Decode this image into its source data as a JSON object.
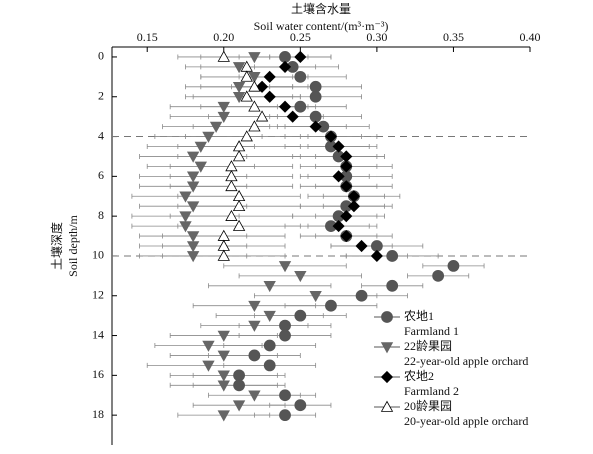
{
  "chart_data": {
    "type": "errorbar-profile",
    "x_title_cn": "土壤含水量",
    "x_title": "Soil water content/(m³·m⁻³)",
    "y_title_cn": "土壤深度",
    "y_title": "Soil depth/m",
    "xlim": [
      0.127,
      0.4
    ],
    "xticks": [
      0.15,
      {
        "value": 0.2,
        "label": "0.20"
      },
      0.25,
      {
        "value": 0.3,
        "label": "0.30"
      },
      0.35,
      {
        "value": 0.4,
        "label": "0.40"
      }
    ],
    "ylim": [
      -0.5,
      19.5
    ],
    "yticks": [
      0,
      2,
      4,
      6,
      8,
      10,
      12,
      14,
      16,
      18
    ],
    "y_inverted": true,
    "x_axis_top": true,
    "reference_lines": [
      4,
      10
    ],
    "series": [
      {
        "name": "农地1",
        "name_en": "Farmland 1",
        "marker": "circle",
        "color": "#555555",
        "depth": [
          0,
          0.5,
          1,
          1.5,
          2,
          2.5,
          3,
          3.5,
          4,
          4.5,
          5,
          5.5,
          6,
          6.5,
          7,
          7.5,
          8,
          8.5,
          9,
          9.5,
          10,
          10.5,
          11,
          11.5,
          12,
          12.5,
          13,
          13.5,
          14,
          14.5,
          15,
          15.5,
          16,
          16.5,
          17,
          17.5,
          18
        ],
        "values": [
          0.24,
          0.245,
          0.25,
          0.26,
          0.26,
          0.25,
          0.26,
          0.265,
          0.27,
          0.27,
          0.275,
          0.28,
          0.28,
          0.28,
          0.285,
          0.28,
          0.275,
          0.27,
          0.28,
          0.3,
          0.31,
          0.35,
          0.34,
          0.31,
          0.29,
          0.27,
          0.25,
          0.24,
          0.24,
          0.23,
          0.22,
          0.23,
          0.21,
          0.21,
          0.24,
          0.25,
          0.24
        ],
        "errors": [
          0.03,
          0.03,
          0.03,
          0.03,
          0.03,
          0.03,
          0.03,
          0.03,
          0.03,
          0.03,
          0.03,
          0.03,
          0.03,
          0.03,
          0.03,
          0.03,
          0.03,
          0.03,
          0.03,
          0.03,
          0.03,
          0.02,
          0.02,
          0.02,
          0.03,
          0.03,
          0.03,
          0.03,
          0.03,
          0.03,
          0.03,
          0.03,
          0.03,
          0.03,
          0.02,
          0.02,
          0.02
        ]
      },
      {
        "name": "22龄果园",
        "name_en": "22-year-old apple orchard",
        "marker": "triangle-down",
        "color": "#666666",
        "depth": [
          0,
          0.5,
          1,
          1.5,
          2,
          2.5,
          3,
          3.5,
          4,
          4.5,
          5,
          5.5,
          6,
          6.5,
          7,
          7.5,
          8,
          8.5,
          9,
          9.5,
          10,
          10.5,
          11,
          11.5,
          12,
          12.5,
          13,
          13.5,
          14,
          14.5,
          15,
          15.5,
          16,
          16.5,
          17,
          17.5,
          18
        ],
        "values": [
          0.22,
          0.21,
          0.22,
          0.21,
          0.21,
          0.2,
          0.2,
          0.195,
          0.19,
          0.185,
          0.18,
          0.185,
          0.18,
          0.18,
          0.175,
          0.18,
          0.175,
          0.175,
          0.18,
          0.18,
          0.18,
          0.24,
          0.25,
          0.23,
          0.26,
          0.22,
          0.23,
          0.22,
          0.2,
          0.19,
          0.2,
          0.19,
          0.2,
          0.2,
          0.22,
          0.21,
          0.2
        ],
        "errors": [
          0.035,
          0.035,
          0.035,
          0.035,
          0.035,
          0.035,
          0.035,
          0.035,
          0.035,
          0.035,
          0.035,
          0.035,
          0.035,
          0.035,
          0.035,
          0.035,
          0.035,
          0.035,
          0.035,
          0.035,
          0.035,
          0.04,
          0.04,
          0.04,
          0.04,
          0.04,
          0.035,
          0.035,
          0.035,
          0.035,
          0.035,
          0.04,
          0.035,
          0.035,
          0.03,
          0.03,
          0.03
        ]
      },
      {
        "name": "农地2",
        "name_en": "Farmland 2",
        "marker": "diamond",
        "color": "#000000",
        "depth": [
          0,
          0.5,
          1,
          1.5,
          2,
          2.5,
          3,
          3.5,
          4,
          4.5,
          5,
          5.5,
          6,
          6.5,
          7,
          7.5,
          8,
          8.5,
          9,
          9.5,
          10
        ],
        "values": [
          0.25,
          0.24,
          0.23,
          0.225,
          0.23,
          0.24,
          0.245,
          0.26,
          0.27,
          0.275,
          0.28,
          0.28,
          0.275,
          0.28,
          0.285,
          0.285,
          0.28,
          0.275,
          0.28,
          0.29,
          0.3
        ],
        "errors": [
          0.02,
          0.02,
          0.02,
          0.02,
          0.02,
          0.02,
          0.02,
          0.02,
          0.02,
          0.02,
          0.02,
          0.02,
          0.02,
          0.02,
          0.02,
          0.02,
          0.02,
          0.02,
          0.02,
          0.02,
          0.02
        ]
      },
      {
        "name": "20龄果园",
        "name_en": "20-year-old apple orchard",
        "marker": "triangle-up",
        "color": "#ffffff",
        "depth": [
          0,
          0.5,
          1,
          1.5,
          2,
          2.5,
          3,
          3.5,
          4,
          4.5,
          5,
          5.5,
          6,
          6.5,
          7,
          7.5,
          8,
          8.5,
          9,
          9.5,
          10
        ],
        "values": [
          0.2,
          0.215,
          0.215,
          0.22,
          0.215,
          0.22,
          0.225,
          0.22,
          0.215,
          0.21,
          0.21,
          0.205,
          0.205,
          0.205,
          0.21,
          0.21,
          0.205,
          0.21,
          0.2,
          0.2,
          0.2
        ],
        "errors": [
          0.03,
          0.03,
          0.03,
          0.035,
          0.035,
          0.035,
          0.035,
          0.04,
          0.04,
          0.04,
          0.04,
          0.04,
          0.04,
          0.04,
          0.04,
          0.04,
          0.04,
          0.04,
          0.04,
          0.04,
          0.04
        ]
      }
    ]
  }
}
